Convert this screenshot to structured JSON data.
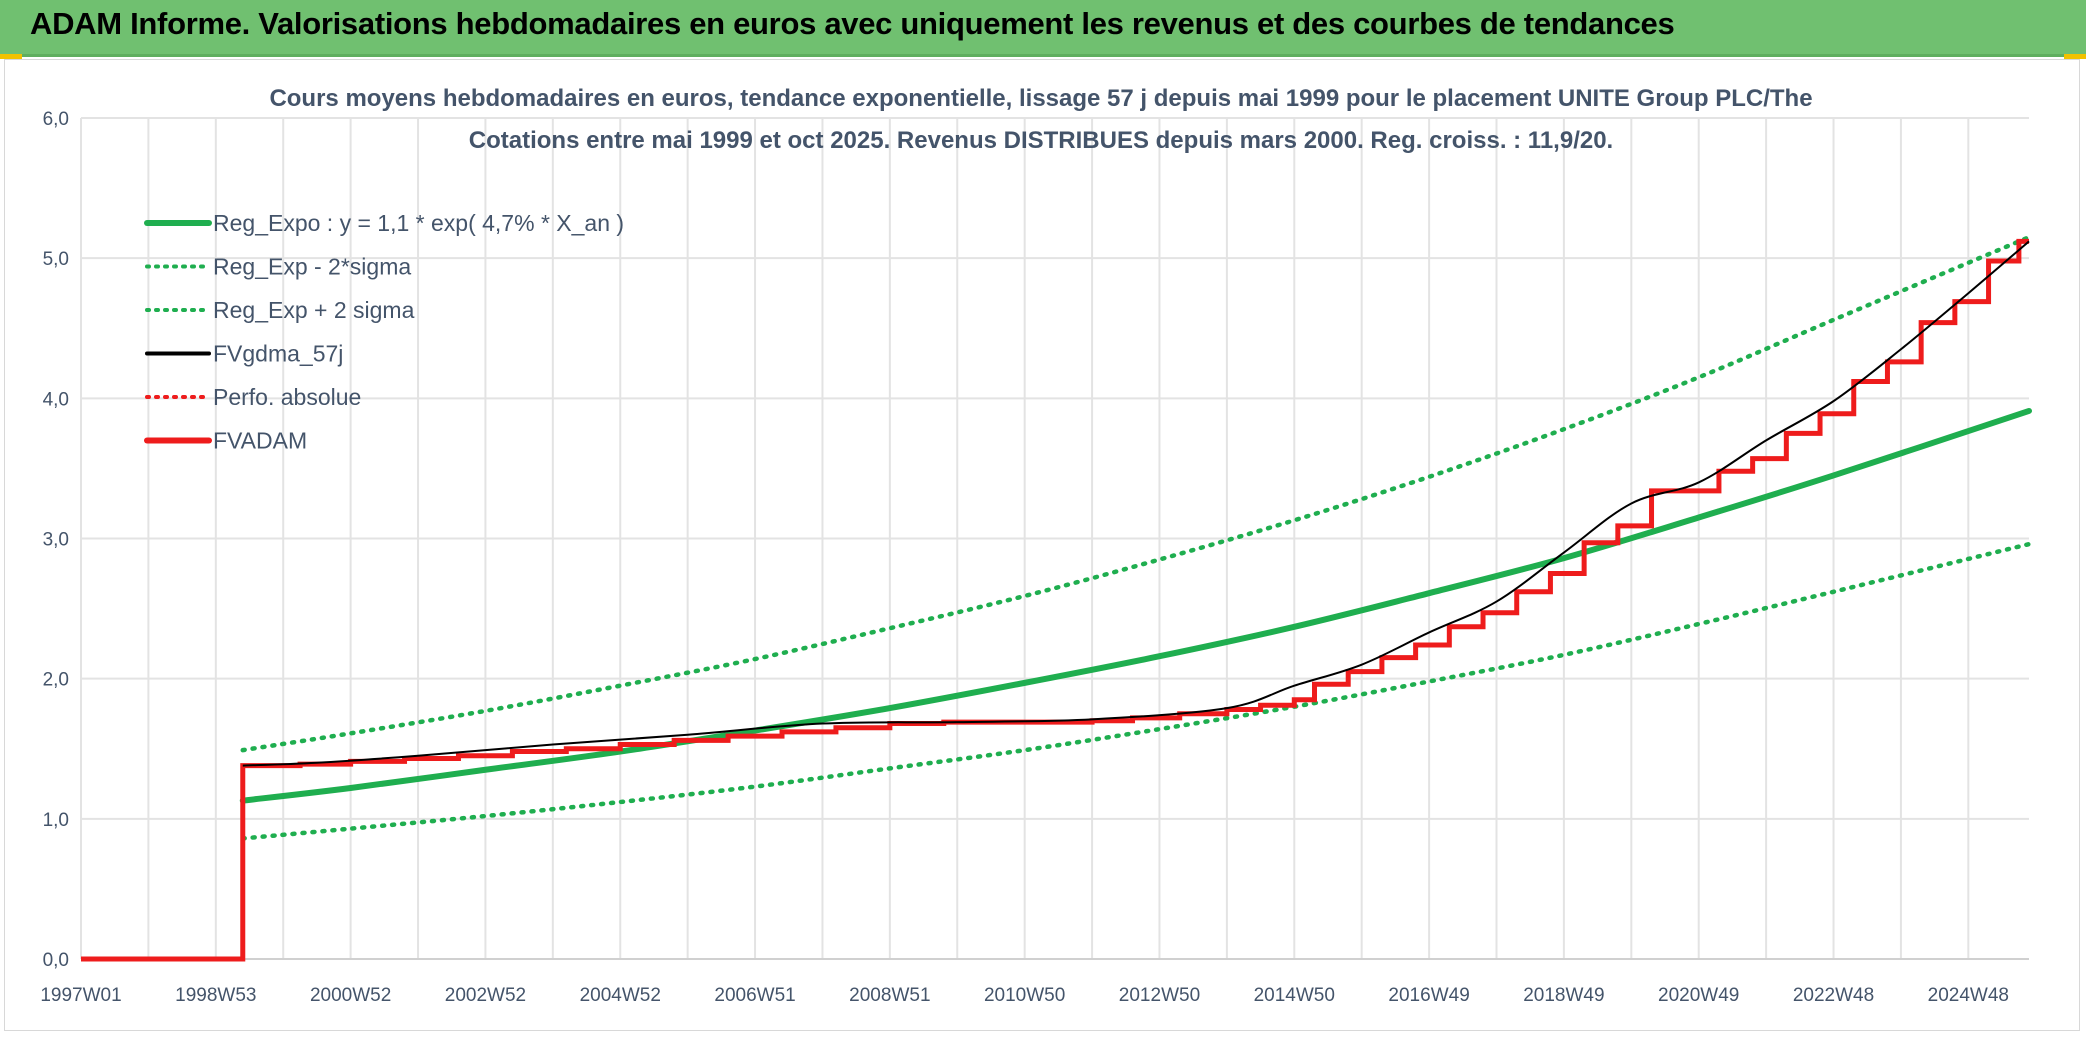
{
  "banner": {
    "title": "ADAM Informe. Valorisations hebdomadaires en euros avec uniquement les revenus et des courbes de tendances"
  },
  "colors": {
    "banner_bg": "#70c070",
    "green": "#1fae4f",
    "red": "#ee1c1c",
    "black": "#000000",
    "grid": "#e3e3e3",
    "text": "#44546a"
  },
  "chart_data": {
    "type": "line",
    "title_lines": [
      "Cours moyens hebdomadaires en euros, tendance exponentielle, lissage 57 j depuis mai 1999 pour le placement UNITE Group PLC/The",
      "Cotations entre mai 1999 et oct 2025. Revenus DISTRIBUES depuis mars 2000. Reg. croiss. : 11,9/20."
    ],
    "xlabel": "",
    "ylabel": "",
    "x_range_years": [
      1997.0,
      2025.9
    ],
    "ylim": [
      0,
      6
    ],
    "y_ticks": [
      "0,0",
      "1,0",
      "2,0",
      "3,0",
      "4,0",
      "5,0",
      "6,0"
    ],
    "x_ticks": [
      {
        "label": "1997W01",
        "year": 1997.0
      },
      {
        "label": "1998W53",
        "year": 1999.0
      },
      {
        "label": "2000W52",
        "year": 2001.0
      },
      {
        "label": "2002W52",
        "year": 2003.0
      },
      {
        "label": "2004W52",
        "year": 2005.0
      },
      {
        "label": "2006W51",
        "year": 2007.0
      },
      {
        "label": "2008W51",
        "year": 2009.0
      },
      {
        "label": "2010W50",
        "year": 2011.0
      },
      {
        "label": "2012W50",
        "year": 2013.0
      },
      {
        "label": "2014W50",
        "year": 2015.0
      },
      {
        "label": "2016W49",
        "year": 2017.0
      },
      {
        "label": "2018W49",
        "year": 2019.0
      },
      {
        "label": "2020W49",
        "year": 2021.0
      },
      {
        "label": "2022W48",
        "year": 2023.0
      },
      {
        "label": "2024W48",
        "year": 2025.0
      }
    ],
    "grid": true,
    "legend_position": "top-left",
    "legend": [
      {
        "name": "Reg_Expo : y = 1,1 * exp( 4,7% *  X_an )",
        "color": "#1fae4f",
        "style": "solid-thick"
      },
      {
        "name": "Reg_Exp - 2*sigma",
        "color": "#1fae4f",
        "style": "dotted"
      },
      {
        "name": "Reg_Exp + 2 sigma",
        "color": "#1fae4f",
        "style": "dotted"
      },
      {
        "name": "FVgdma_57j",
        "color": "#000000",
        "style": "solid"
      },
      {
        "name": "Perfo. absolue",
        "color": "#ee1c1c",
        "style": "dotted"
      },
      {
        "name": "FVADAM",
        "color": "#ee1c1c",
        "style": "solid-thick"
      }
    ],
    "series": [
      {
        "name": "Reg_Expo",
        "x": [
          1999.4,
          2001.0,
          2003.0,
          2005.0,
          2007.0,
          2009.0,
          2011.0,
          2013.0,
          2015.0,
          2017.0,
          2019.0,
          2021.0,
          2023.0,
          2025.9
        ],
        "values": [
          1.13,
          1.22,
          1.35,
          1.48,
          1.63,
          1.79,
          1.97,
          2.16,
          2.37,
          2.61,
          2.86,
          3.15,
          3.45,
          3.91
        ]
      },
      {
        "name": "Reg_Exp - 2*sigma",
        "x": [
          1999.4,
          2001.0,
          2003.0,
          2005.0,
          2007.0,
          2009.0,
          2011.0,
          2013.0,
          2015.0,
          2017.0,
          2019.0,
          2021.0,
          2023.0,
          2025.9
        ],
        "values": [
          0.86,
          0.93,
          1.02,
          1.12,
          1.23,
          1.36,
          1.49,
          1.64,
          1.8,
          1.98,
          2.17,
          2.39,
          2.62,
          2.96
        ]
      },
      {
        "name": "Reg_Exp + 2 sigma",
        "x": [
          1999.4,
          2001.0,
          2003.0,
          2005.0,
          2007.0,
          2009.0,
          2011.0,
          2013.0,
          2015.0,
          2017.0,
          2019.0,
          2021.0,
          2023.0,
          2025.9
        ],
        "values": [
          1.49,
          1.61,
          1.77,
          1.95,
          2.14,
          2.36,
          2.59,
          2.85,
          3.13,
          3.44,
          3.78,
          4.15,
          4.56,
          5.15
        ]
      },
      {
        "name": "FVgdma_57j",
        "x": [
          1999.4,
          2000.5,
          2002.0,
          2004.0,
          2006.0,
          2008.0,
          2010.0,
          2012.0,
          2014.0,
          2015.0,
          2016.0,
          2017.0,
          2018.0,
          2019.0,
          2020.0,
          2021.0,
          2022.0,
          2023.0,
          2024.0,
          2025.0,
          2025.9
        ],
        "values": [
          1.38,
          1.4,
          1.45,
          1.53,
          1.6,
          1.68,
          1.69,
          1.71,
          1.79,
          1.95,
          2.1,
          2.33,
          2.55,
          2.9,
          3.25,
          3.4,
          3.7,
          3.98,
          4.35,
          4.75,
          5.12
        ]
      },
      {
        "name": "FVADAM",
        "steps": [
          [
            1997.0,
            0.0
          ],
          [
            1999.4,
            0.0
          ],
          [
            1999.4,
            1.38
          ],
          [
            2000.25,
            1.38
          ],
          [
            2000.25,
            1.39
          ],
          [
            2001.0,
            1.39
          ],
          [
            2001.0,
            1.41
          ],
          [
            2001.8,
            1.41
          ],
          [
            2001.8,
            1.43
          ],
          [
            2002.6,
            1.43
          ],
          [
            2002.6,
            1.45
          ],
          [
            2003.4,
            1.45
          ],
          [
            2003.4,
            1.48
          ],
          [
            2004.2,
            1.48
          ],
          [
            2004.2,
            1.5
          ],
          [
            2005.0,
            1.5
          ],
          [
            2005.0,
            1.53
          ],
          [
            2005.8,
            1.53
          ],
          [
            2005.8,
            1.56
          ],
          [
            2006.6,
            1.56
          ],
          [
            2006.6,
            1.59
          ],
          [
            2007.4,
            1.59
          ],
          [
            2007.4,
            1.62
          ],
          [
            2008.2,
            1.62
          ],
          [
            2008.2,
            1.65
          ],
          [
            2009.0,
            1.65
          ],
          [
            2009.0,
            1.68
          ],
          [
            2009.8,
            1.68
          ],
          [
            2009.8,
            1.69
          ],
          [
            2012.0,
            1.69
          ],
          [
            2012.0,
            1.7
          ],
          [
            2012.6,
            1.7
          ],
          [
            2012.6,
            1.72
          ],
          [
            2013.3,
            1.72
          ],
          [
            2013.3,
            1.75
          ],
          [
            2014.0,
            1.75
          ],
          [
            2014.0,
            1.78
          ],
          [
            2014.5,
            1.78
          ],
          [
            2014.5,
            1.81
          ],
          [
            2015.0,
            1.81
          ],
          [
            2015.0,
            1.85
          ],
          [
            2015.3,
            1.85
          ],
          [
            2015.3,
            1.96
          ],
          [
            2015.8,
            1.96
          ],
          [
            2015.8,
            2.05
          ],
          [
            2016.3,
            2.05
          ],
          [
            2016.3,
            2.15
          ],
          [
            2016.8,
            2.15
          ],
          [
            2016.8,
            2.24
          ],
          [
            2017.3,
            2.24
          ],
          [
            2017.3,
            2.37
          ],
          [
            2017.8,
            2.37
          ],
          [
            2017.8,
            2.47
          ],
          [
            2018.3,
            2.47
          ],
          [
            2018.3,
            2.62
          ],
          [
            2018.8,
            2.62
          ],
          [
            2018.8,
            2.75
          ],
          [
            2019.3,
            2.75
          ],
          [
            2019.3,
            2.97
          ],
          [
            2019.8,
            2.97
          ],
          [
            2019.8,
            3.09
          ],
          [
            2020.3,
            3.09
          ],
          [
            2020.3,
            3.34
          ],
          [
            2021.3,
            3.34
          ],
          [
            2021.3,
            3.48
          ],
          [
            2021.8,
            3.48
          ],
          [
            2021.8,
            3.57
          ],
          [
            2022.3,
            3.57
          ],
          [
            2022.3,
            3.75
          ],
          [
            2022.8,
            3.75
          ],
          [
            2022.8,
            3.89
          ],
          [
            2023.3,
            3.89
          ],
          [
            2023.3,
            4.12
          ],
          [
            2023.8,
            4.12
          ],
          [
            2023.8,
            4.26
          ],
          [
            2024.3,
            4.26
          ],
          [
            2024.3,
            4.54
          ],
          [
            2024.8,
            4.54
          ],
          [
            2024.8,
            4.69
          ],
          [
            2025.3,
            4.69
          ],
          [
            2025.3,
            4.98
          ],
          [
            2025.75,
            4.98
          ],
          [
            2025.75,
            5.12
          ],
          [
            2025.9,
            5.12
          ]
        ]
      }
    ]
  }
}
